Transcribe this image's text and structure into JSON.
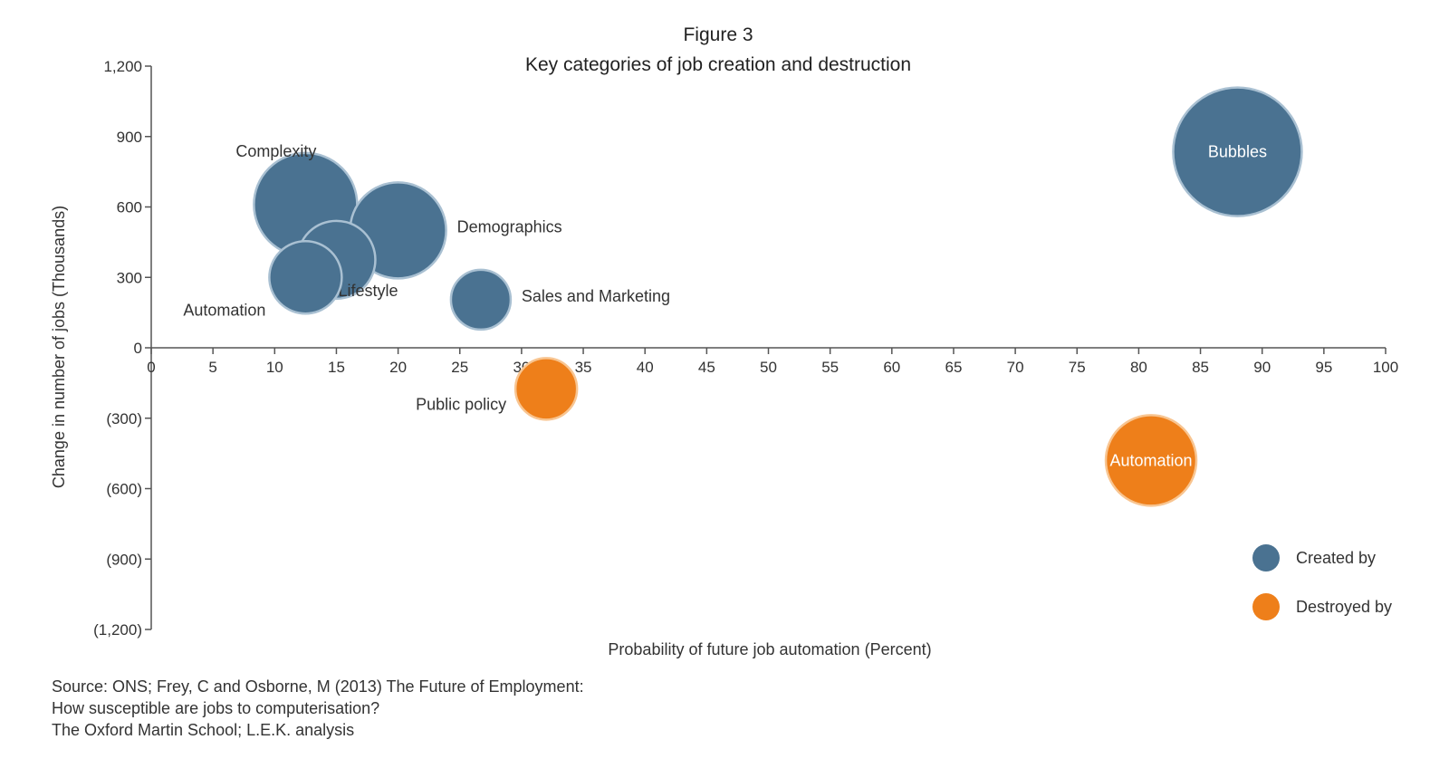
{
  "chart_data": {
    "type": "bubble",
    "figure_label": "Figure 3",
    "title": "Key categories of job creation and destruction",
    "xlabel": "Probability of future job automation (Percent)",
    "ylabel": "Change in number of jobs  (Thousands)",
    "xlim": [
      0,
      100
    ],
    "ylim": [
      -1200,
      1200
    ],
    "x_ticks": [
      {
        "value": 0,
        "label": "0"
      },
      {
        "value": 5,
        "label": "5"
      },
      {
        "value": 10,
        "label": "10"
      },
      {
        "value": 15,
        "label": "15"
      },
      {
        "value": 20,
        "label": "20"
      },
      {
        "value": 25,
        "label": "25"
      },
      {
        "value": 30,
        "label": "30"
      },
      {
        "value": 35,
        "label": "35"
      },
      {
        "value": 40,
        "label": "40"
      },
      {
        "value": 45,
        "label": "45"
      },
      {
        "value": 50,
        "label": "50"
      },
      {
        "value": 55,
        "label": "55"
      },
      {
        "value": 60,
        "label": "60"
      },
      {
        "value": 65,
        "label": "65"
      },
      {
        "value": 70,
        "label": "70"
      },
      {
        "value": 75,
        "label": "75"
      },
      {
        "value": 80,
        "label": "80"
      },
      {
        "value": 85,
        "label": "85"
      },
      {
        "value": 90,
        "label": "90"
      },
      {
        "value": 95,
        "label": "95"
      },
      {
        "value": 100,
        "label": "100"
      }
    ],
    "y_ticks": [
      {
        "value": 1200,
        "label": "1,200"
      },
      {
        "value": 900,
        "label": "900"
      },
      {
        "value": 600,
        "label": "600"
      },
      {
        "value": 300,
        "label": "300"
      },
      {
        "value": 0,
        "label": "0"
      },
      {
        "value": -300,
        "label": "(300)"
      },
      {
        "value": -600,
        "label": "(600)"
      },
      {
        "value": -900,
        "label": "(900)"
      },
      {
        "value": -1200,
        "label": "(1,200)"
      }
    ],
    "grid": false,
    "legend_position": "bottom-right",
    "series": [
      {
        "name": "Created by",
        "color": "#4a7291",
        "points": [
          {
            "label": "Complexity",
            "x": 12.5,
            "y": 610,
            "size": 57,
            "label_pos": "upper-left"
          },
          {
            "label": "Demographics",
            "x": 20,
            "y": 500,
            "size": 53,
            "label_pos": "right"
          },
          {
            "label": "Lifestyle",
            "x": 15,
            "y": 375,
            "size": 43,
            "label_pos": "lower-right"
          },
          {
            "label": "Automation",
            "x": 12.5,
            "y": 300,
            "size": 40,
            "label_pos": "lower-left"
          },
          {
            "label": "Sales and Marketing",
            "x": 26.7,
            "y": 205,
            "size": 33,
            "label_pos": "right"
          },
          {
            "label": "Bubbles",
            "x": 88,
            "y": 835,
            "size": 71,
            "label_pos": "inside"
          }
        ]
      },
      {
        "name": "Destroyed by",
        "color": "#ee7f1a",
        "points": [
          {
            "label": "Public policy",
            "x": 32,
            "y": -175,
            "size": 34,
            "label_pos": "left"
          },
          {
            "label": "Automation",
            "x": 81,
            "y": -480,
            "size": 50,
            "label_pos": "inside"
          }
        ]
      }
    ]
  },
  "source": {
    "lines": [
      "Source: ONS; Frey, C and Osborne, M (2013) The Future of Employment:",
      "How susceptible are jobs to computerisation?",
      "The Oxford Martin School; L.E.K. analysis"
    ]
  }
}
